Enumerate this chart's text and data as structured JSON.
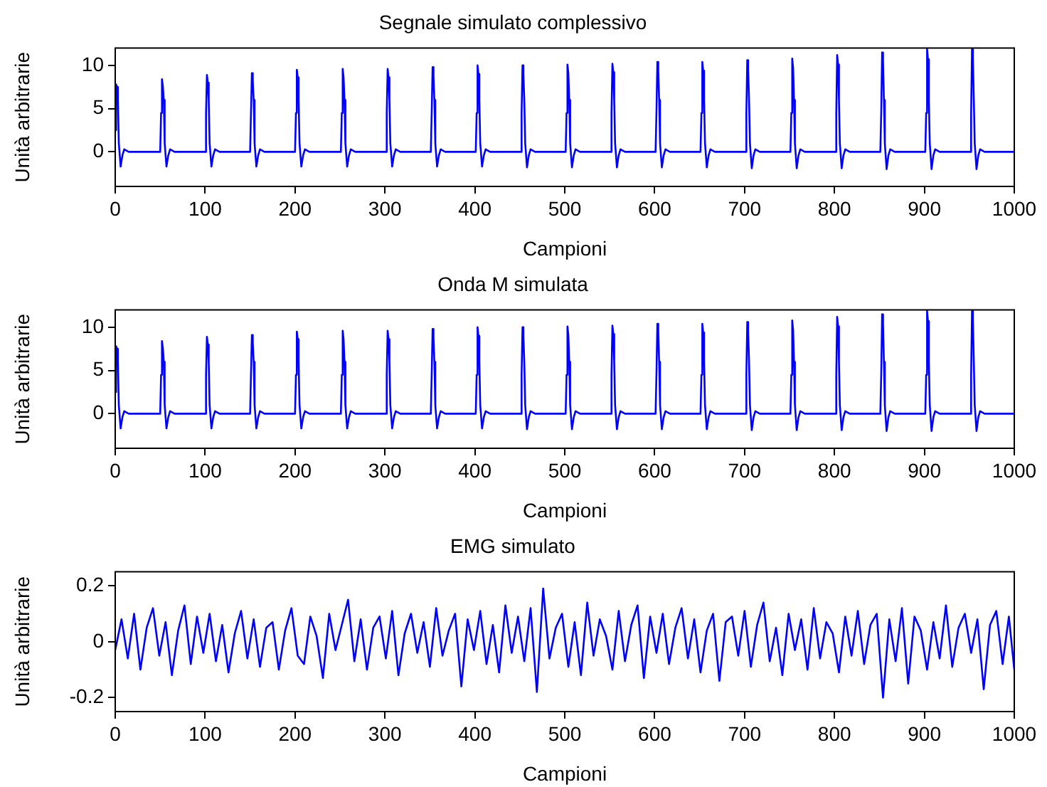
{
  "chart_data": [
    {
      "type": "line",
      "title": "Segnale simulato complessivo",
      "xlabel": "Campioni",
      "ylabel": "Unità arbitrarie",
      "xlim": [
        0,
        1000
      ],
      "xticks": [
        0,
        100,
        200,
        300,
        400,
        500,
        600,
        700,
        800,
        900,
        1000
      ],
      "ylim": [
        -4,
        12
      ],
      "yticks": [
        0,
        5,
        10
      ],
      "x": [
        0,
        1,
        2,
        3,
        4,
        6,
        8,
        10,
        15,
        50,
        51,
        52,
        53,
        54,
        55,
        57,
        59,
        61,
        66,
        100,
        101,
        102,
        103,
        104,
        105,
        107,
        109,
        111,
        116,
        150,
        151,
        152,
        153,
        154,
        155,
        157,
        159,
        161,
        166,
        200,
        201,
        202,
        203,
        204,
        205,
        207,
        209,
        211,
        216,
        251,
        252,
        253,
        254,
        255,
        256,
        258,
        260,
        262,
        267,
        301,
        302,
        303,
        304,
        305,
        306,
        308,
        310,
        312,
        317,
        351,
        352,
        353,
        354,
        355,
        356,
        358,
        360,
        362,
        367,
        401,
        402,
        403,
        404,
        405,
        406,
        408,
        410,
        412,
        417,
        451,
        452,
        453,
        454,
        455,
        456,
        458,
        460,
        462,
        467,
        501,
        502,
        503,
        504,
        505,
        506,
        508,
        510,
        512,
        517,
        551,
        552,
        553,
        554,
        555,
        556,
        558,
        560,
        562,
        567,
        601,
        602,
        603,
        604,
        605,
        606,
        608,
        610,
        612,
        617,
        651,
        652,
        653,
        654,
        655,
        656,
        658,
        660,
        662,
        667,
        701,
        702,
        703,
        704,
        705,
        706,
        708,
        710,
        712,
        717,
        751,
        752,
        753,
        754,
        755,
        756,
        758,
        760,
        762,
        767,
        801,
        802,
        803,
        804,
        805,
        806,
        808,
        810,
        812,
        817,
        851,
        852,
        853,
        854,
        855,
        856,
        858,
        860,
        862,
        867,
        901,
        902,
        903,
        904,
        905,
        906,
        908,
        910,
        912,
        917,
        951,
        952,
        953,
        954,
        955,
        956,
        958,
        960,
        962,
        967,
        1000
      ],
      "series": [
        {
          "color": "#0000ff",
          "values": [
            2.5,
            7.8,
            7.5,
            6,
            1,
            -1.7,
            -0.4,
            0.3,
            0,
            0,
            4.5,
            8.4,
            7.6,
            6,
            1,
            -1.7,
            -0.4,
            0.3,
            0,
            0,
            4.5,
            8.9,
            8,
            6,
            1,
            -1.7,
            -0.4,
            0.3,
            0,
            0,
            4.5,
            9.1,
            8.2,
            6,
            1,
            -1.7,
            -0.4,
            0.3,
            0,
            0,
            4.5,
            9.5,
            8.6,
            6,
            1,
            -1.7,
            -0.4,
            0.3,
            0,
            0,
            4.5,
            9.6,
            8.6,
            6,
            1,
            -1.7,
            -0.4,
            0.3,
            0,
            0,
            4.5,
            9.6,
            8.6,
            6,
            1,
            -1.7,
            -0.4,
            0.3,
            0,
            0,
            4.5,
            9.8,
            8.8,
            6,
            1,
            -1.7,
            -0.4,
            0.3,
            0,
            0,
            4.5,
            10,
            9,
            6,
            1,
            -1.7,
            -0.4,
            0.3,
            0,
            0,
            4.5,
            10,
            9,
            6,
            1,
            -1.8,
            -0.4,
            0.3,
            0,
            0,
            4.5,
            10.1,
            9.1,
            6,
            1,
            -1.8,
            -0.4,
            0.3,
            0,
            0,
            4.5,
            10.2,
            9.2,
            6,
            1,
            -1.8,
            -0.4,
            0.3,
            0,
            0,
            4.5,
            10.4,
            9.4,
            6,
            1,
            -1.8,
            -0.4,
            0.3,
            0,
            0,
            4.5,
            10.4,
            9.4,
            6,
            1,
            -1.8,
            -0.4,
            0.3,
            0,
            0,
            4.5,
            10.6,
            9.5,
            6,
            1,
            -1.9,
            -0.4,
            0.3,
            0,
            0,
            4.5,
            10.8,
            9.7,
            6,
            1,
            -1.9,
            -0.4,
            0.3,
            0,
            0,
            4.5,
            11.2,
            10.1,
            6,
            1,
            -1.9,
            -0.4,
            0.3,
            0,
            0,
            4.5,
            11.5,
            10.4,
            6,
            1,
            -2,
            -0.4,
            0.3,
            0,
            0,
            4.5,
            11.9,
            10.7,
            6,
            1,
            -2,
            -0.4,
            0.3,
            0,
            0,
            4.5,
            11.9,
            10.7,
            6,
            1,
            -2,
            -0.4,
            0.3,
            0,
            0
          ]
        }
      ]
    },
    {
      "type": "line",
      "title": "Onda M simulata",
      "xlabel": "Campioni",
      "ylabel": "Unità arbitrarie",
      "xlim": [
        0,
        1000
      ],
      "xticks": [
        0,
        100,
        200,
        300,
        400,
        500,
        600,
        700,
        800,
        900,
        1000
      ],
      "ylim": [
        -4,
        12
      ],
      "yticks": [
        0,
        5,
        10
      ],
      "x": [
        0,
        1,
        2,
        3,
        4,
        6,
        8,
        10,
        15,
        50,
        51,
        52,
        53,
        54,
        55,
        57,
        59,
        61,
        66,
        100,
        101,
        102,
        103,
        104,
        105,
        107,
        109,
        111,
        116,
        150,
        151,
        152,
        153,
        154,
        155,
        157,
        159,
        161,
        166,
        200,
        201,
        202,
        203,
        204,
        205,
        207,
        209,
        211,
        216,
        251,
        252,
        253,
        254,
        255,
        256,
        258,
        260,
        262,
        267,
        301,
        302,
        303,
        304,
        305,
        306,
        308,
        310,
        312,
        317,
        351,
        352,
        353,
        354,
        355,
        356,
        358,
        360,
        362,
        367,
        401,
        402,
        403,
        404,
        405,
        406,
        408,
        410,
        412,
        417,
        451,
        452,
        453,
        454,
        455,
        456,
        458,
        460,
        462,
        467,
        501,
        502,
        503,
        504,
        505,
        506,
        508,
        510,
        512,
        517,
        551,
        552,
        553,
        554,
        555,
        556,
        558,
        560,
        562,
        567,
        601,
        602,
        603,
        604,
        605,
        606,
        608,
        610,
        612,
        617,
        651,
        652,
        653,
        654,
        655,
        656,
        658,
        660,
        662,
        667,
        701,
        702,
        703,
        704,
        705,
        706,
        708,
        710,
        712,
        717,
        751,
        752,
        753,
        754,
        755,
        756,
        758,
        760,
        762,
        767,
        801,
        802,
        803,
        804,
        805,
        806,
        808,
        810,
        812,
        817,
        851,
        852,
        853,
        854,
        855,
        856,
        858,
        860,
        862,
        867,
        901,
        902,
        903,
        904,
        905,
        906,
        908,
        910,
        912,
        917,
        951,
        952,
        953,
        954,
        955,
        956,
        958,
        960,
        962,
        967,
        1000
      ],
      "series": [
        {
          "color": "#0000ff",
          "values": [
            2.5,
            7.8,
            7.5,
            6,
            1,
            -1.7,
            -0.4,
            0.3,
            0,
            0,
            4.5,
            8.4,
            7.6,
            6,
            1,
            -1.7,
            -0.4,
            0.3,
            0,
            0,
            4.5,
            8.9,
            8,
            6,
            1,
            -1.7,
            -0.4,
            0.3,
            0,
            0,
            4.5,
            9.1,
            8.2,
            6,
            1,
            -1.7,
            -0.4,
            0.3,
            0,
            0,
            4.5,
            9.5,
            8.6,
            6,
            1,
            -1.7,
            -0.4,
            0.3,
            0,
            0,
            4.5,
            9.6,
            8.6,
            6,
            1,
            -1.7,
            -0.4,
            0.3,
            0,
            0,
            4.5,
            9.6,
            8.6,
            6,
            1,
            -1.7,
            -0.4,
            0.3,
            0,
            0,
            4.5,
            9.8,
            8.8,
            6,
            1,
            -1.7,
            -0.4,
            0.3,
            0,
            0,
            4.5,
            10,
            9,
            6,
            1,
            -1.7,
            -0.4,
            0.3,
            0,
            0,
            4.5,
            10,
            9,
            6,
            1,
            -1.8,
            -0.4,
            0.3,
            0,
            0,
            4.5,
            10.1,
            9.1,
            6,
            1,
            -1.8,
            -0.4,
            0.3,
            0,
            0,
            4.5,
            10.2,
            9.2,
            6,
            1,
            -1.8,
            -0.4,
            0.3,
            0,
            0,
            4.5,
            10.4,
            9.4,
            6,
            1,
            -1.8,
            -0.4,
            0.3,
            0,
            0,
            4.5,
            10.4,
            9.4,
            6,
            1,
            -1.8,
            -0.4,
            0.3,
            0,
            0,
            4.5,
            10.6,
            9.5,
            6,
            1,
            -1.9,
            -0.4,
            0.3,
            0,
            0,
            4.5,
            10.8,
            9.7,
            6,
            1,
            -1.9,
            -0.4,
            0.3,
            0,
            0,
            4.5,
            11.2,
            10.1,
            6,
            1,
            -1.9,
            -0.4,
            0.3,
            0,
            0,
            4.5,
            11.5,
            10.4,
            6,
            1,
            -2,
            -0.4,
            0.3,
            0,
            0,
            4.5,
            11.9,
            10.7,
            6,
            1,
            -2,
            -0.4,
            0.3,
            0,
            0,
            4.5,
            11.9,
            10.7,
            6,
            1,
            -2,
            -0.4,
            0.3,
            0,
            0
          ]
        }
      ]
    },
    {
      "type": "line",
      "title": "EMG simulato",
      "xlabel": "Campioni",
      "ylabel": "Unità arbitrarie",
      "xlim": [
        0,
        1000
      ],
      "xticks": [
        0,
        100,
        200,
        300,
        400,
        500,
        600,
        700,
        800,
        900,
        1000
      ],
      "ylim": [
        -0.25,
        0.25
      ],
      "yticks": [
        -0.2,
        0,
        0.2
      ],
      "x": [
        0,
        7,
        14,
        21,
        28,
        35,
        42,
        49,
        56,
        63,
        70,
        77,
        84,
        91,
        98,
        105,
        112,
        119,
        126,
        133,
        140,
        147,
        154,
        161,
        168,
        175,
        182,
        189,
        196,
        203,
        210,
        217,
        224,
        231,
        238,
        245,
        252,
        259,
        266,
        273,
        280,
        287,
        294,
        301,
        308,
        315,
        322,
        329,
        336,
        343,
        350,
        357,
        364,
        371,
        378,
        385,
        392,
        399,
        406,
        413,
        420,
        427,
        434,
        441,
        448,
        455,
        462,
        469,
        476,
        483,
        490,
        497,
        504,
        511,
        518,
        525,
        532,
        539,
        546,
        553,
        560,
        567,
        574,
        581,
        588,
        595,
        602,
        609,
        616,
        623,
        630,
        637,
        644,
        651,
        658,
        665,
        672,
        679,
        686,
        693,
        700,
        707,
        714,
        721,
        728,
        735,
        742,
        749,
        756,
        763,
        770,
        777,
        784,
        791,
        798,
        805,
        812,
        819,
        826,
        833,
        840,
        847,
        854,
        861,
        868,
        875,
        882,
        889,
        896,
        903,
        910,
        917,
        924,
        931,
        938,
        945,
        952,
        959,
        966,
        973,
        980,
        987,
        994,
        1000
      ],
      "series": [
        {
          "color": "#0000ff",
          "values": [
            -0.03,
            0.08,
            -0.06,
            0.1,
            -0.1,
            0.05,
            0.12,
            -0.05,
            0.07,
            -0.12,
            0.04,
            0.13,
            -0.08,
            0.09,
            -0.04,
            0.1,
            -0.07,
            0.06,
            -0.11,
            0.03,
            0.11,
            -0.06,
            0.08,
            -0.09,
            0.05,
            0.07,
            -0.1,
            0.04,
            0.12,
            -0.05,
            -0.08,
            0.09,
            0.02,
            -0.13,
            0.1,
            -0.03,
            0.06,
            0.15,
            -0.07,
            0.08,
            -0.1,
            0.05,
            0.09,
            -0.06,
            0.11,
            -0.12,
            0.03,
            0.1,
            -0.04,
            0.07,
            -0.09,
            0.12,
            -0.05,
            0.04,
            0.1,
            -0.16,
            0.08,
            -0.03,
            0.11,
            -0.08,
            0.06,
            -0.11,
            0.13,
            -0.04,
            0.09,
            -0.07,
            0.12,
            -0.18,
            0.19,
            -0.06,
            0.05,
            0.1,
            -0.09,
            0.07,
            -0.12,
            0.14,
            -0.05,
            0.08,
            0.02,
            -0.1,
            0.11,
            -0.07,
            0.06,
            0.13,
            -0.13,
            0.09,
            -0.04,
            0.1,
            -0.08,
            0.05,
            0.12,
            -0.06,
            0.08,
            -0.11,
            0.04,
            0.1,
            -0.14,
            0.07,
            0.09,
            -0.05,
            0.11,
            -0.09,
            0.06,
            0.14,
            -0.07,
            0.05,
            -0.12,
            0.1,
            -0.03,
            0.08,
            -0.1,
            0.12,
            -0.06,
            0.07,
            0.03,
            -0.11,
            0.09,
            -0.05,
            0.11,
            -0.08,
            0.06,
            0.1,
            -0.2,
            0.08,
            -0.07,
            0.12,
            -0.15,
            0.09,
            0.04,
            -0.1,
            0.07,
            -0.06,
            0.13,
            -0.09,
            0.05,
            0.1,
            -0.04,
            0.08,
            -0.17,
            0.06,
            0.11,
            -0.08,
            0.09,
            -0.1
          ]
        }
      ]
    }
  ]
}
